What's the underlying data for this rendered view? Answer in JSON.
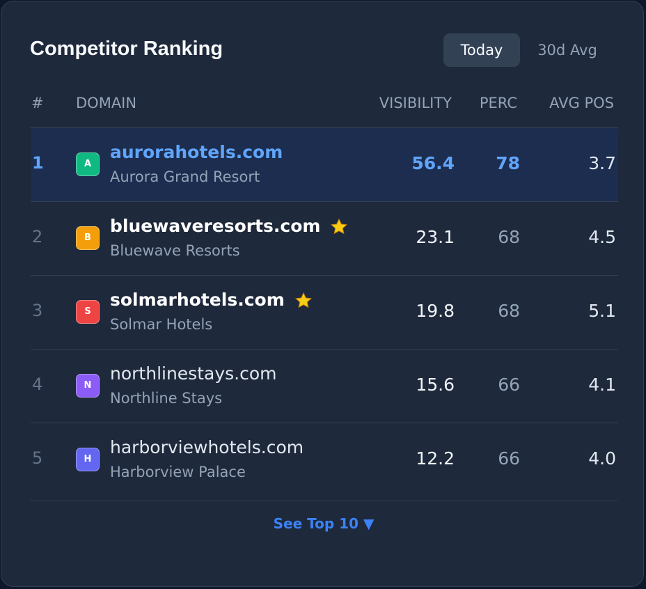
{
  "header": {
    "title": "Competitor Ranking",
    "tabs": [
      "Today",
      "30d Avg"
    ]
  },
  "table": {
    "columns": [
      "#",
      "DOMAIN",
      "VISIBILITY",
      "PERC",
      "AVG POS"
    ],
    "rows": [
      {
        "rank": "1",
        "avatar": "A",
        "color": "#10b981",
        "domain": "aurorahotels.com",
        "name": "Aurora Grand Resort",
        "visibility": "56.4",
        "perc": "78",
        "avg_pos": "3.7",
        "active": true,
        "starred": false
      },
      {
        "rank": "2",
        "avatar": "B",
        "color": "#f59e0b",
        "domain": "bluewaveresorts.com",
        "name": "Bluewave Resorts",
        "visibility": "23.1",
        "perc": "68",
        "avg_pos": "4.5",
        "active": false,
        "starred": true
      },
      {
        "rank": "3",
        "avatar": "S",
        "color": "#ef4444",
        "domain": "solmarhotels.com",
        "name": "Solmar Hotels",
        "visibility": "19.8",
        "perc": "68",
        "avg_pos": "5.1",
        "active": false,
        "starred": true
      },
      {
        "rank": "4",
        "avatar": "N",
        "color": "#8b5cf6",
        "domain": "northlinestays.com",
        "name": "Northline Stays",
        "visibility": "15.6",
        "perc": "66",
        "avg_pos": "4.1",
        "active": false,
        "starred": false
      },
      {
        "rank": "5",
        "avatar": "H",
        "color": "#6366f1",
        "domain": "harborviewhotels.com",
        "name": "Harborview Palace",
        "visibility": "12.2",
        "perc": "66",
        "avg_pos": "4.0",
        "active": false,
        "starred": false
      }
    ]
  },
  "footer": {
    "link": "See Top 10 ▼"
  }
}
